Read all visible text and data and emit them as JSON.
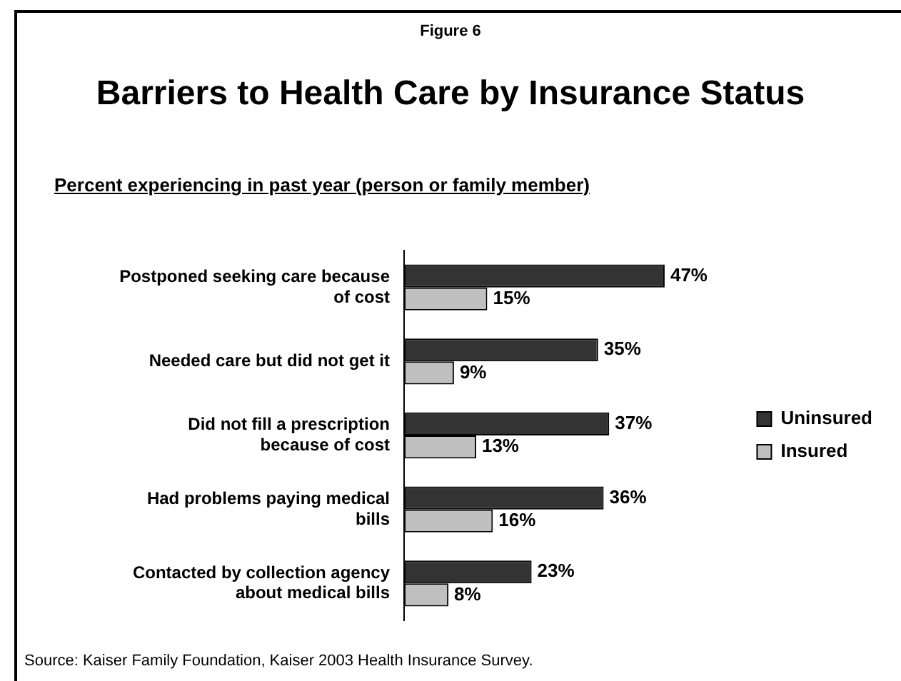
{
  "chart_data": {
    "type": "bar",
    "orientation": "horizontal",
    "title": "Barriers to Health Care by Insurance Status",
    "subtitle": "Percent experiencing in past year (person or family member)",
    "categories": [
      "Postponed seeking care because of cost",
      "Needed care but did not get it",
      "Did not fill a prescription because of cost",
      "Had problems paying medical bills",
      "Contacted by collection agency about medical bills"
    ],
    "series": [
      {
        "name": "Uninsured",
        "color": "#333333",
        "values": [
          47,
          35,
          37,
          36,
          23
        ],
        "value_labels": [
          "47%",
          "35%",
          "37%",
          "36%",
          "23%"
        ]
      },
      {
        "name": "Insured",
        "color": "#c0c0c0",
        "values": [
          15,
          9,
          13,
          16,
          8
        ],
        "value_labels": [
          "15%",
          "9%",
          "13%",
          "16%",
          "8%"
        ]
      }
    ],
    "legend": "right",
    "tick_labels": "y",
    "annotations": [
      "Figure 6",
      "Source: Kaiser Family Foundation, Kaiser 2003 Health Insurance Survey."
    ]
  }
}
